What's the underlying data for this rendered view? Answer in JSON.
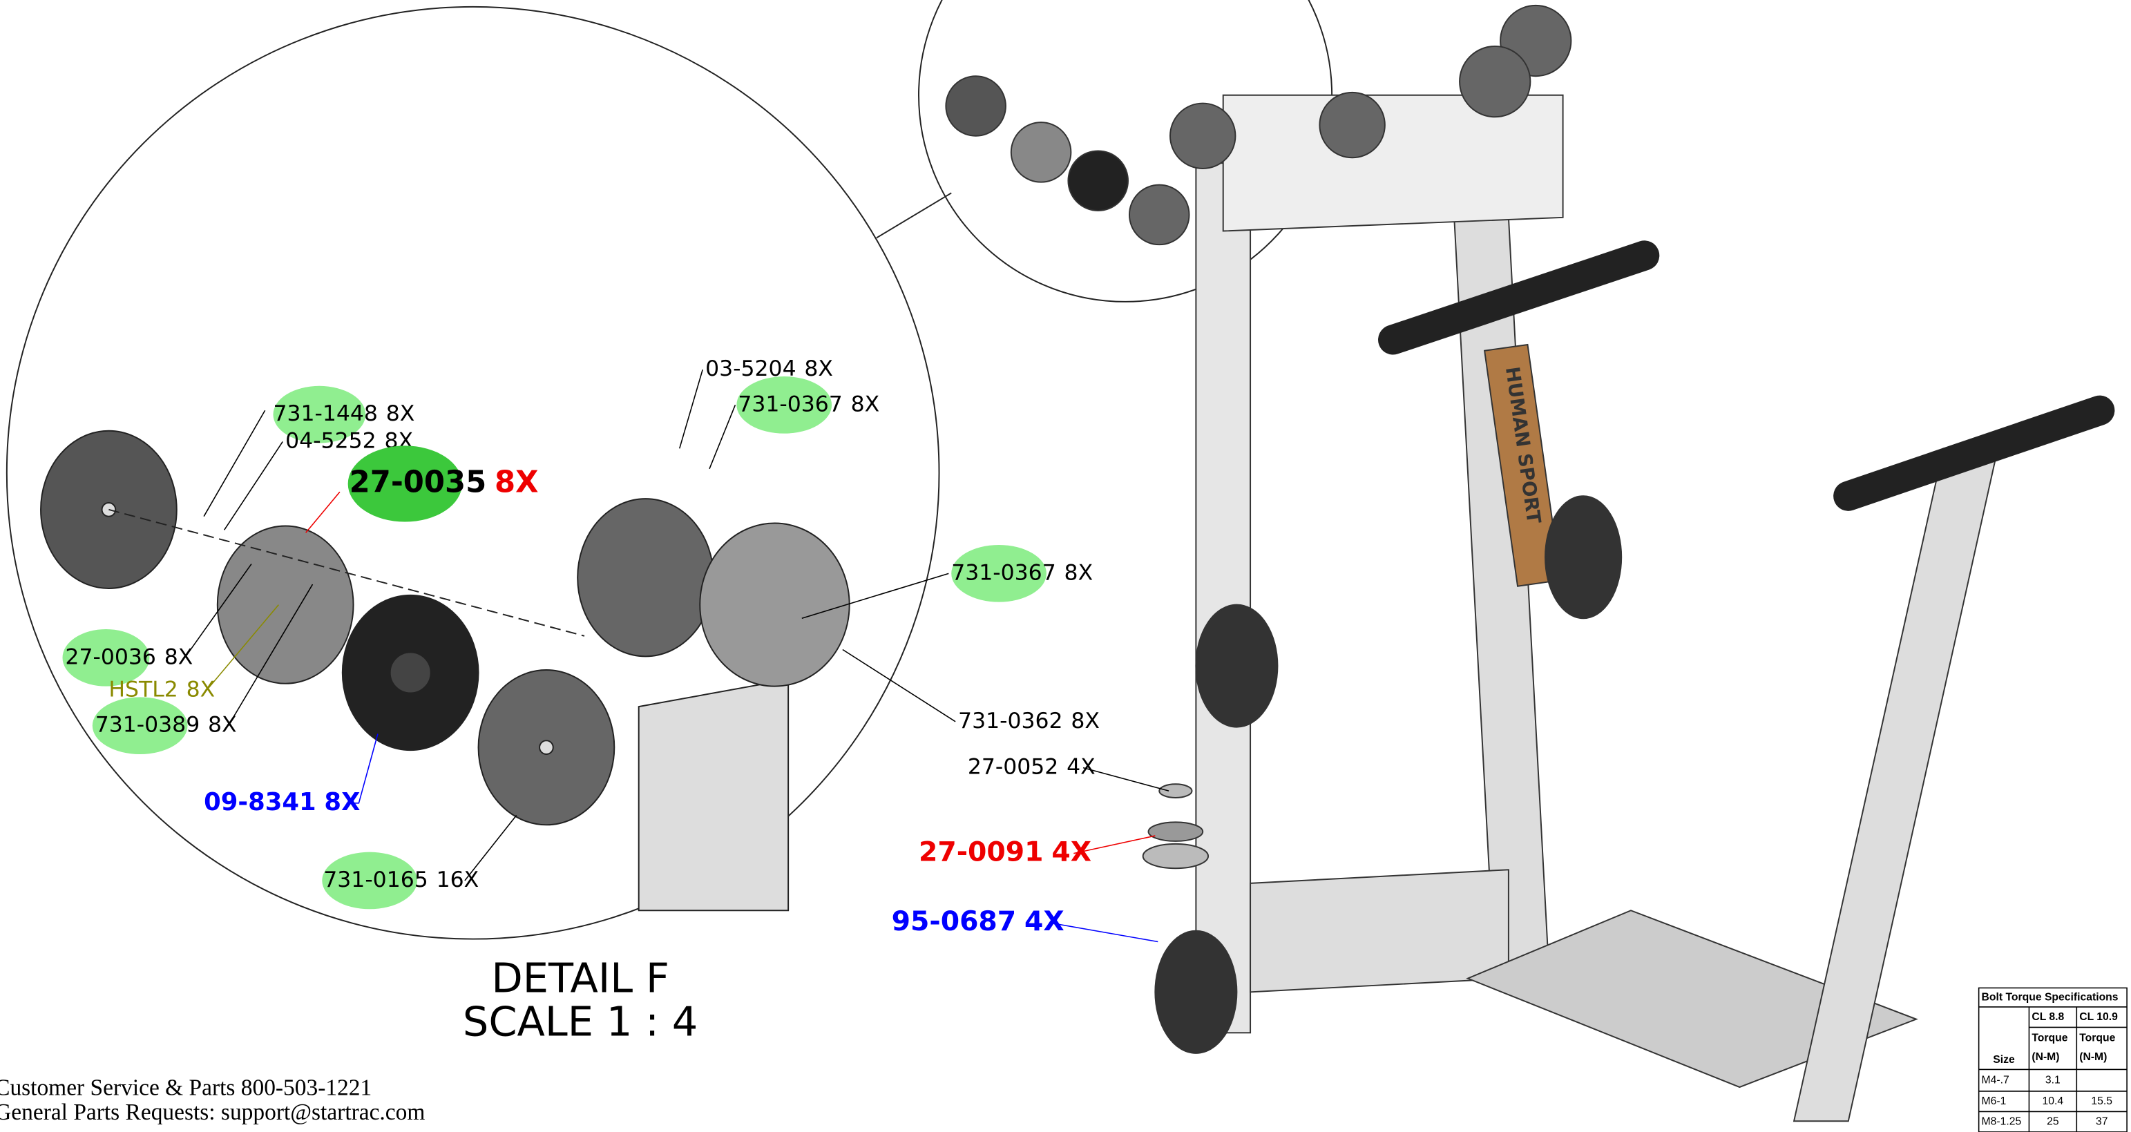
{
  "callouts": [
    {
      "part": "731-1448",
      "qty": "8X"
    },
    {
      "part": "04-5252",
      "qty": "8X"
    },
    {
      "part": "27-0035",
      "qty": "8X"
    },
    {
      "part": "03-5204",
      "qty": "8X"
    },
    {
      "part": "731-0367",
      "qty": "8X"
    },
    {
      "part": "731-0367",
      "qty": "8X"
    },
    {
      "part": "27-0036",
      "qty": "8X"
    },
    {
      "part": "HSTL2",
      "qty": "8X"
    },
    {
      "part": "731-0389",
      "qty": "8X"
    },
    {
      "part": "731-0362",
      "qty": "8X"
    },
    {
      "part": "27-0052",
      "qty": "4X"
    },
    {
      "part": "27-0091",
      "qty": "4X"
    },
    {
      "part": "95-0687",
      "qty": "4X"
    },
    {
      "part": "09-8341",
      "qty": "8X"
    },
    {
      "part": "731-0165",
      "qty": "16X"
    }
  ],
  "detail": {
    "title": "DETAIL F",
    "scale": "SCALE 1 : 4"
  },
  "logo": {
    "left": "HUMAN",
    "right": "SPORT"
  },
  "footer": [
    "Customer Service & Parts 800-503-1221",
    "General Parts Requests: support@startrac.com"
  ],
  "torque_table": {
    "title": "Bolt Torque Specifications",
    "size_header": "Size",
    "classes": [
      "CL 8.8",
      "CL 10.9"
    ],
    "torque_header": [
      "Torque",
      "(N-M)"
    ],
    "rows": [
      [
        "M4-.7",
        3.1
      ],
      [
        "M6-1",
        10.4,
        15.5
      ],
      [
        "M8-1.25",
        25,
        37
      ]
    ]
  }
}
